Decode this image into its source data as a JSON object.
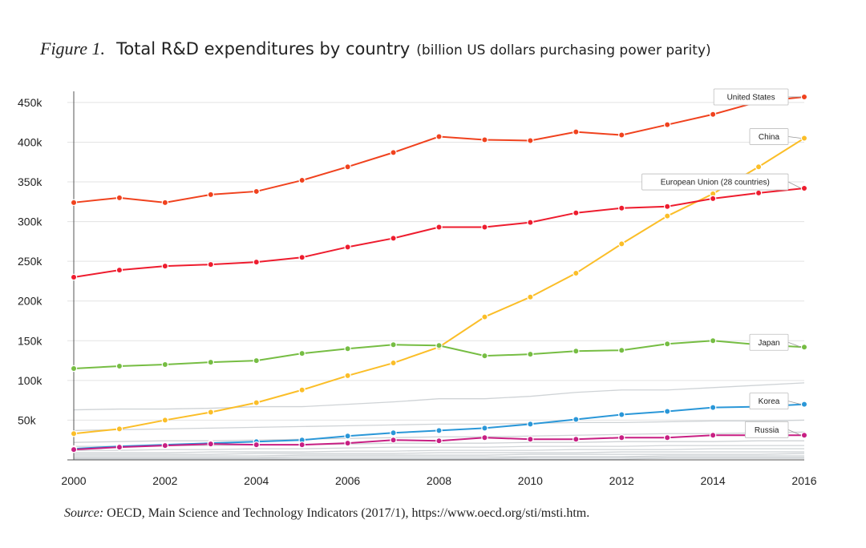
{
  "figure": {
    "label": "Figure 1.",
    "title": "Total R&D expenditures by country",
    "subtitle": "(billion US dollars purchasing power parity)"
  },
  "source": {
    "label": "Source:",
    "text": " OECD, Main Science and Technology Indicators (2017/1), https://www.oecd.org/sti/msti.htm."
  },
  "chart_data": {
    "type": "line",
    "x": [
      2000,
      2001,
      2002,
      2003,
      2004,
      2005,
      2006,
      2007,
      2008,
      2009,
      2010,
      2011,
      2012,
      2013,
      2014,
      2015,
      2016
    ],
    "xticks": [
      "2000",
      "2002",
      "2004",
      "2006",
      "2008",
      "2010",
      "2012",
      "2014",
      "2016"
    ],
    "yticks": [
      {
        "value": 50000,
        "label": "50k"
      },
      {
        "value": 100000,
        "label": "100k"
      },
      {
        "value": 150000,
        "label": "150k"
      },
      {
        "value": 200000,
        "label": "200k"
      },
      {
        "value": 250000,
        "label": "250k"
      },
      {
        "value": 300000,
        "label": "300k"
      },
      {
        "value": 350000,
        "label": "350k"
      },
      {
        "value": 400000,
        "label": "400k"
      },
      {
        "value": 450000,
        "label": "450k"
      }
    ],
    "ylim": [
      0,
      460000
    ],
    "xlim": [
      2000,
      2016
    ],
    "grid": true,
    "series": [
      {
        "name": "United States",
        "color": "#f0421e",
        "labelValue": 457000,
        "values": [
          324000,
          330000,
          324000,
          334000,
          338000,
          352000,
          369000,
          387000,
          407000,
          403000,
          402000,
          413000,
          409000,
          422000,
          435000,
          451000,
          457000
        ]
      },
      {
        "name": "China",
        "color": "#fbbe28",
        "labelValue": 407000,
        "values": [
          33000,
          39000,
          50000,
          60000,
          72000,
          88000,
          106000,
          122000,
          142000,
          180000,
          205000,
          235000,
          272000,
          307000,
          335000,
          369000,
          405000
        ]
      },
      {
        "name": "European Union (28 countries)",
        "color": "#ee1c2e",
        "labelValue": 350000,
        "values": [
          230000,
          239000,
          244000,
          246000,
          249000,
          255000,
          268000,
          279000,
          293000,
          293000,
          299000,
          311000,
          317000,
          319000,
          329000,
          336000,
          342000
        ]
      },
      {
        "name": "Japan",
        "color": "#76bd43",
        "labelValue": 148000,
        "values": [
          115000,
          118000,
          120000,
          123000,
          125000,
          134000,
          140000,
          145000,
          144000,
          131000,
          133000,
          137000,
          138000,
          146000,
          150000,
          145000,
          142000
        ]
      },
      {
        "name": "Korea",
        "color": "#2a97d8",
        "labelValue": 74000,
        "values": [
          14000,
          17000,
          19000,
          21000,
          23000,
          25000,
          30000,
          34000,
          37000,
          40000,
          45000,
          51000,
          57000,
          61000,
          66000,
          67000,
          70000
        ]
      },
      {
        "name": "Russia",
        "color": "#c81f83",
        "labelValue": 38000,
        "values": [
          13000,
          16000,
          18000,
          20000,
          19000,
          19000,
          21000,
          25000,
          24000,
          28000,
          26000,
          26000,
          28000,
          28000,
          31000,
          31000,
          31000
        ]
      }
    ],
    "background_series": [
      {
        "values": [
          63000,
          64000,
          64000,
          65000,
          67000,
          67000,
          70000,
          73000,
          77000,
          77000,
          80000,
          85000,
          88000,
          88000,
          91000,
          94000,
          97000
        ]
      },
      {
        "values": [
          37000,
          38000,
          39000,
          40000,
          41000,
          42000,
          43000,
          44000,
          45000,
          45000,
          46000,
          47000,
          47000,
          48000,
          49000,
          49000,
          50000
        ]
      },
      {
        "values": [
          22000,
          23000,
          24000,
          24000,
          25000,
          26000,
          27000,
          28000,
          29000,
          29000,
          30000,
          31000,
          32000,
          33000,
          33000,
          34000,
          35000
        ]
      },
      {
        "values": [
          17000,
          17000,
          18000,
          18000,
          19000,
          19000,
          20000,
          21000,
          21000,
          21000,
          22000,
          22000,
          23000,
          23000,
          23000,
          24000,
          24000
        ]
      },
      {
        "values": [
          12000,
          12000,
          13000,
          13000,
          14000,
          14000,
          15000,
          16000,
          16000,
          16000,
          17000,
          17000,
          17000,
          18000,
          18000,
          18000,
          18000
        ]
      },
      {
        "values": [
          9000,
          9000,
          9000,
          10000,
          10000,
          10000,
          11000,
          11000,
          12000,
          12000,
          12000,
          13000,
          13000,
          13000,
          14000,
          14000,
          14000
        ]
      },
      {
        "values": [
          7000,
          7000,
          7000,
          7000,
          8000,
          8000,
          8000,
          8000,
          9000,
          9000,
          9000,
          9000,
          10000,
          10000,
          10000,
          10000,
          10000
        ]
      },
      {
        "values": [
          5000,
          5000,
          5000,
          5000,
          5000,
          6000,
          6000,
          6000,
          6000,
          6000,
          7000,
          7000,
          7000,
          7000,
          7000,
          7000,
          8000
        ]
      },
      {
        "values": [
          3000,
          3000,
          3000,
          3000,
          3000,
          4000,
          4000,
          4000,
          4000,
          4000,
          4000,
          4000,
          4000,
          5000,
          5000,
          5000,
          5000
        ]
      },
      {
        "values": [
          2000,
          2000,
          2000,
          2000,
          2000,
          2000,
          2000,
          2000,
          2000,
          2000,
          3000,
          3000,
          3000,
          3000,
          3000,
          3000,
          3000
        ]
      },
      {
        "values": [
          1000,
          1000,
          1000,
          1000,
          1000,
          1000,
          1000,
          1000,
          1000,
          1000,
          1000,
          1000,
          1000,
          2000,
          2000,
          2000,
          2000
        ]
      }
    ]
  }
}
